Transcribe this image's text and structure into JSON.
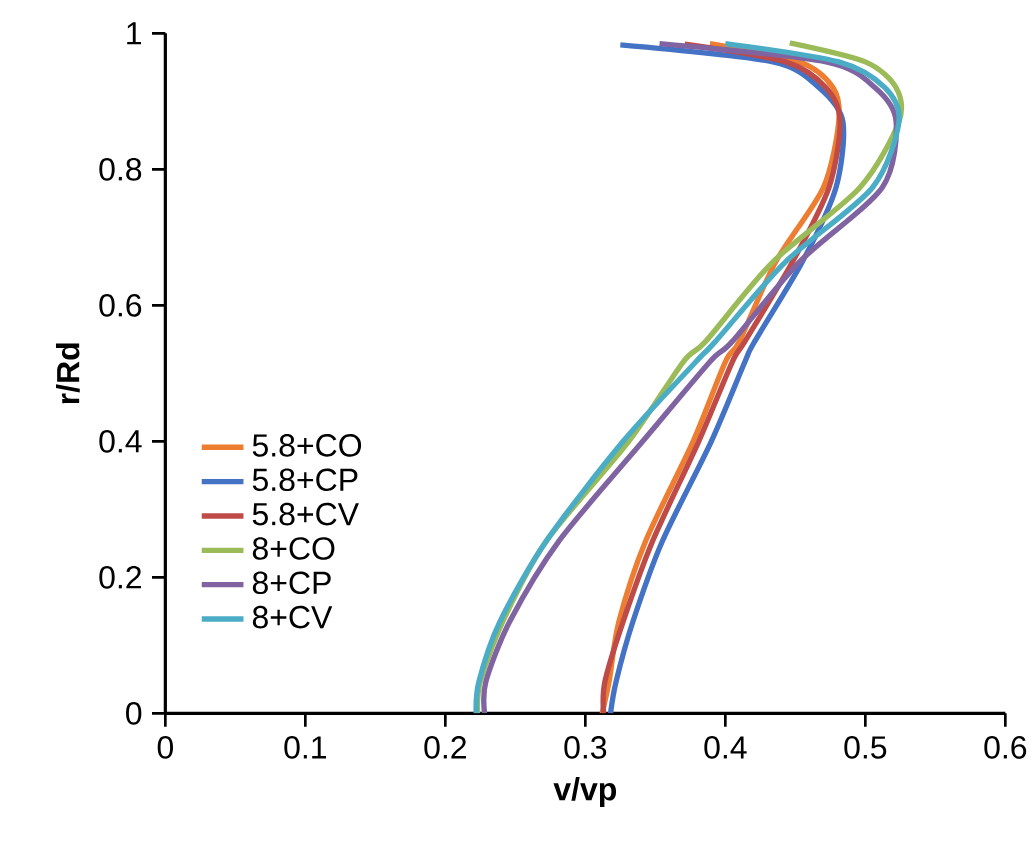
{
  "chart_data": {
    "type": "line",
    "xlabel": "v/vp",
    "ylabel": "r/Rd",
    "xlim": [
      0,
      0.6
    ],
    "ylim": [
      0,
      1
    ],
    "xticks": [
      0,
      0.1,
      0.2,
      0.3,
      0.4,
      0.5,
      0.6
    ],
    "yticks": [
      0,
      0.2,
      0.4,
      0.6,
      0.8,
      1
    ],
    "grid": false,
    "legend": "left",
    "marker": "none",
    "line_style": "solid",
    "series": [
      {
        "name": "5.8+CO",
        "color": "#ed7d31",
        "x": [
          0.312,
          0.317,
          0.324,
          0.343,
          0.377,
          0.4,
          0.41,
          0.436,
          0.47,
          0.481,
          0.477,
          0.453,
          0.389
        ],
        "values": [
          0,
          0.047,
          0.135,
          0.253,
          0.4,
          0.517,
          0.547,
          0.664,
          0.773,
          0.87,
          0.92,
          0.958,
          0.985
        ]
      },
      {
        "name": "5.8+CP",
        "color": "#4472c4",
        "x": [
          0.318,
          0.322,
          0.334,
          0.355,
          0.39,
          0.414,
          0.421,
          0.455,
          0.479,
          0.484,
          0.467,
          0.434,
          0.325
        ],
        "values": [
          0,
          0.047,
          0.135,
          0.253,
          0.4,
          0.517,
          0.547,
          0.664,
          0.773,
          0.87,
          0.92,
          0.958,
          0.983
        ]
      },
      {
        "name": "5.8+CV",
        "color": "#be4b48",
        "x": [
          0.313,
          0.314,
          0.327,
          0.348,
          0.381,
          0.405,
          0.414,
          0.448,
          0.474,
          0.482,
          0.472,
          0.443,
          0.371
        ],
        "values": [
          0,
          0.047,
          0.135,
          0.253,
          0.4,
          0.517,
          0.547,
          0.664,
          0.773,
          0.87,
          0.92,
          0.958,
          0.984
        ]
      },
      {
        "name": "8+CO",
        "color": "#9bbb59",
        "x": [
          0.223,
          0.225,
          0.241,
          0.272,
          0.331,
          0.37,
          0.386,
          0.434,
          0.496,
          0.524,
          0.522,
          0.5,
          0.446
        ],
        "values": [
          0,
          0.047,
          0.135,
          0.253,
          0.4,
          0.517,
          0.547,
          0.664,
          0.773,
          0.87,
          0.92,
          0.958,
          0.986
        ]
      },
      {
        "name": "8+CP",
        "color": "#8064a2",
        "x": [
          0.228,
          0.229,
          0.246,
          0.281,
          0.341,
          0.389,
          0.405,
          0.453,
          0.512,
          0.522,
          0.507,
          0.472,
          0.353
        ],
        "values": [
          0,
          0.047,
          0.135,
          0.253,
          0.4,
          0.517,
          0.547,
          0.664,
          0.773,
          0.87,
          0.92,
          0.958,
          0.985
        ]
      },
      {
        "name": "8+CV",
        "color": "#4bacc6",
        "x": [
          0.222,
          0.224,
          0.239,
          0.272,
          0.327,
          0.379,
          0.393,
          0.443,
          0.505,
          0.524,
          0.514,
          0.481,
          0.4
        ],
        "values": [
          0,
          0.047,
          0.135,
          0.253,
          0.4,
          0.517,
          0.547,
          0.664,
          0.773,
          0.87,
          0.92,
          0.958,
          0.985
        ]
      }
    ]
  }
}
